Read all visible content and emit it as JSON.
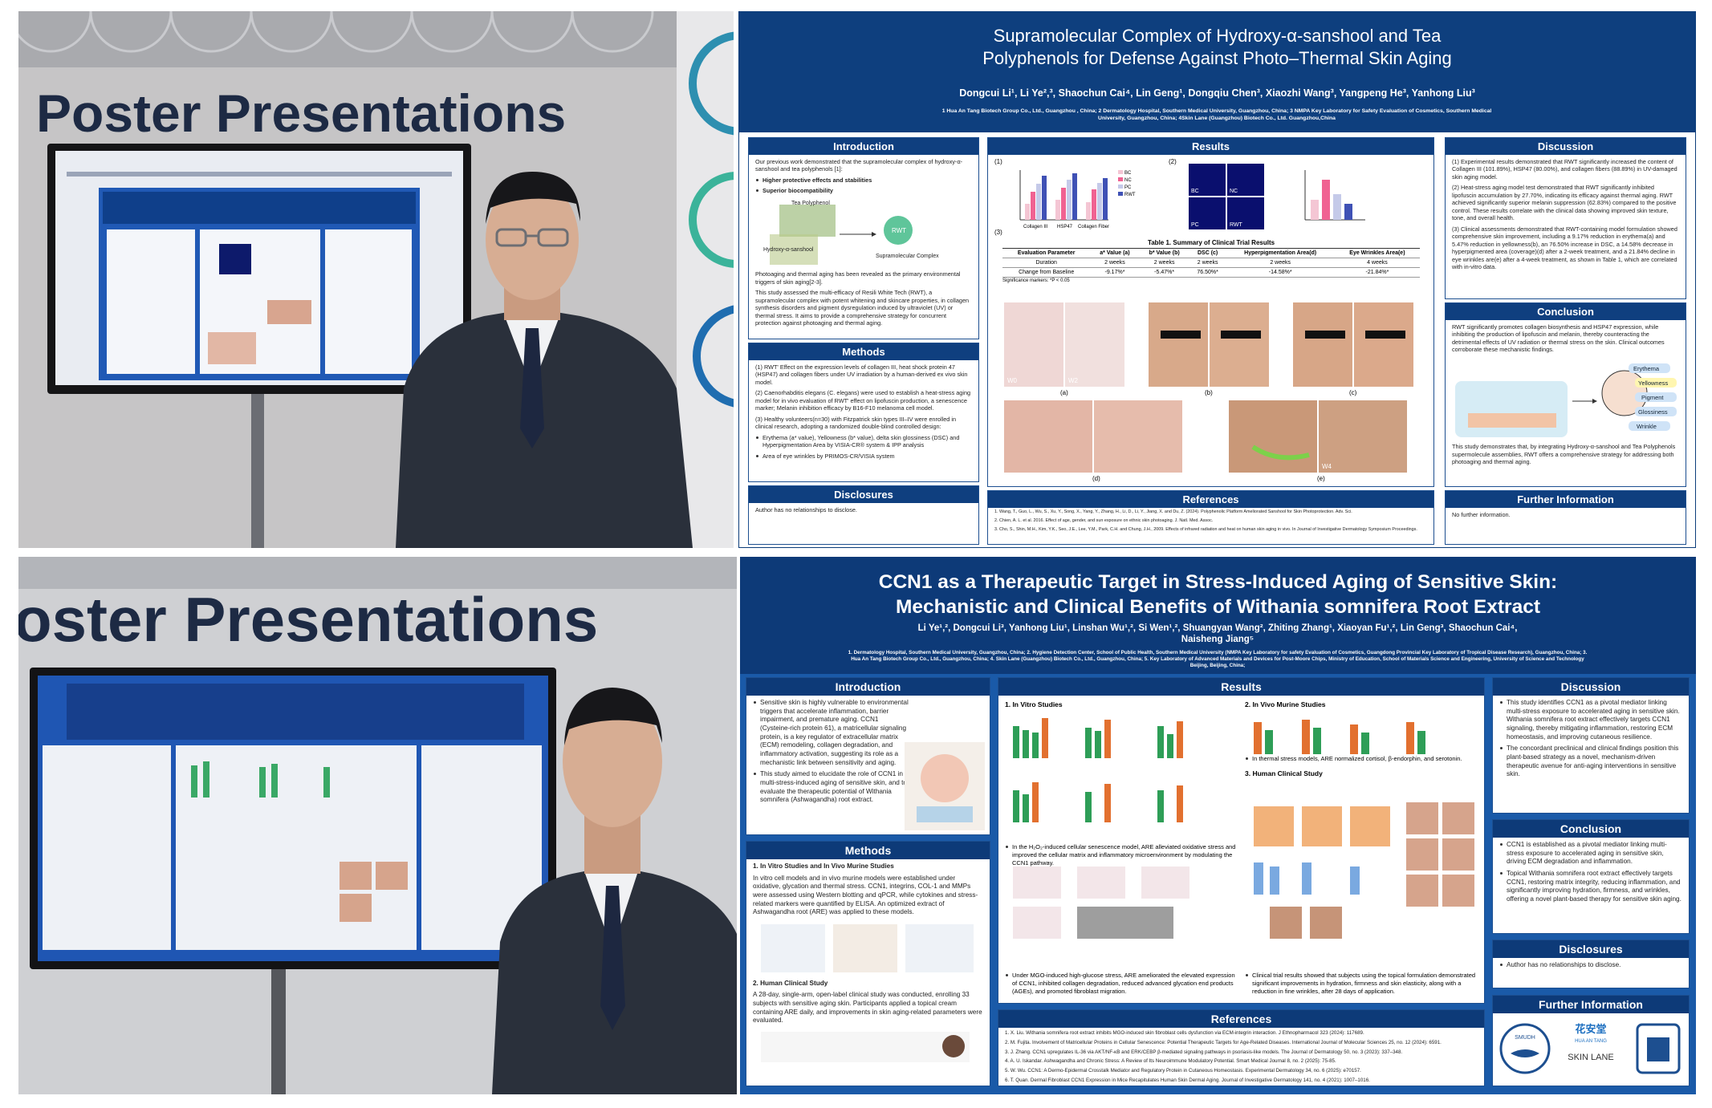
{
  "photo_top": {
    "banner": "Poster Presentations"
  },
  "poster_top": {
    "title_lines": [
      "Supramolecular Complex of Hydroxy-α-sanshool and Tea",
      "Polyphenols for Defense Against Photo–Thermal Skin Aging"
    ],
    "authors": "Dongcui Li¹, Li Ye²,³, Shaochun Cai⁴, Lin Geng¹, Dongqiu Chen³, Xiaozhi Wang³, Yangpeng He³, Yanhong Liu³",
    "affiliations": "1 Hua An Tang Biotech Group Co., Ltd., Guangzhou , China; 2 Dermatology Hospital, Southern Medical University, Guangzhou, China; 3 NMPA Key Laboratory for Safety Evaluation of Cosmetics, Southern Medical University, Guangzhou, China; 4Skin Lane (Guangzhou) Biotech Co., Ltd. Guangzhou,China",
    "introduction": {
      "heading": "Introduction",
      "lead": "Our previous work demonstrated that the supramolecular complex of hydroxy-α-sanshool and tea polyphenols [1]:",
      "bullets": [
        "Higher protective effects and stabilities",
        "Superior biocompatibility"
      ],
      "diagram": {
        "tea": "Tea Polyphenol",
        "sanshool": "Hydroxy-α-sanshool",
        "rwt": "RWT",
        "complex": "Supramolecular Complex"
      },
      "paragraphs": [
        "Photoaging and thermal aging has been revealed as the primary environmental triggers of skin aging[2-3].",
        "This study assessed the multi-efficacy of Resili White Tech (RWT), a supramolecular complex with potent whitening and skincare properties, in collagen synthesis disorders and pigment dysregulation induced by ultraviolet (UV) or thermal stress. It aims to provide a comprehensive strategy for concurrent protection against photoaging and thermal aging."
      ]
    },
    "methods": {
      "heading": "Methods",
      "items": [
        "(1) RWT' Effect on the expression levels of collagen III, heat shock protein 47 (HSP47) and collagen fibers under UV irradiation by a human-derived ex vivo skin model.",
        "(2) Caenorhabditis elegans (C. elegans) were used to establish a heat-stress aging model for in vivo evaluation of RWT' effect on lipofuscin production, a senescence marker; Melanin inhibition efficacy by B16-F10 melanoma cell model.",
        "(3) Healthy volunteers(n=30) with Fitzpatrick skin types III–IV were enrolled in clinical research, adopting a randomized double-blind controlled design:"
      ],
      "bullets": [
        "Erythema (a* value), Yellowness (b* value), delta skin glossiness (DSC) and Hyperpigmentation Area by VISIA-CR® system & IPP analysis",
        "Area of eye wrinkles by PRIMOS-CR/VISIA system"
      ]
    },
    "disclosures": {
      "heading": "Disclosures",
      "text": "Author has no relationships to disclose."
    },
    "results": {
      "heading": "Results",
      "legend": [
        "BC",
        "NC",
        "PC",
        "RWT"
      ],
      "chart_categories": [
        "Collagen III",
        "HSP47",
        "Collagen Fiber"
      ],
      "panels": [
        "(1)",
        "(2)",
        "(3)",
        "(a)",
        "(b)",
        "(c)",
        "(d)",
        "(e)"
      ],
      "micro_labels": [
        "BC",
        "NC",
        "PC",
        "RWT"
      ],
      "timepoints": [
        "W0",
        "W2",
        "W4"
      ],
      "table": {
        "caption": "Table 1. Summary of Clinical Trial Results",
        "header": [
          "Evaluation Parameter",
          "a* Value (a)",
          "b* Value (b)",
          "DSC (c)",
          "Hyperpigmentation Area(d)",
          "Eye Wrinkles Area(e)"
        ],
        "rows": [
          [
            "Duration",
            "2 weeks",
            "2 weeks",
            "2 weeks",
            "2 weeks",
            "4 weeks"
          ],
          [
            "Change from Baseline",
            "-9.17%*",
            "-5.47%*",
            "76.50%*",
            "-14.58%*",
            "-21.84%*"
          ]
        ],
        "note": "Significance markers: *P < 0.05"
      }
    },
    "references": {
      "heading": "References",
      "items": [
        "1. Wang, T., Guo, L., Wu, S., Xu, Y., Song, X., Yang, Y., Zhang, H., Li, D., Li, Y., Jiang, X. and Du, Z. (2024). Polyphenolic Platform Ameliorated Sanshool for Skin Photoprotection. Adv. Sci.",
        "2. Chien, A. L. et al. 2016. Effect of age, gender, and sun exposure on ethnic skin photoaging. J. Natl. Med. Assoc.",
        "3. Cho, S., Shin, M.H., Kim, Y.K., Seo, J.E., Lee, Y.M., Park, C.H. and Chung, J.H., 2009. Effects of infrared radiation and heat on human skin aging in vivo. In Journal of Investigative Dermatology Symposium Proceedings."
      ]
    },
    "discussion": {
      "heading": "Discussion",
      "paragraphs": [
        "(1) Experimental results demonstrated that RWT significantly increased the content of Collagen III (101.89%), HSP47 (80.00%), and collagen fibers (88.89%) in UV-damaged skin aging model.",
        "(2) Heat-stress aging model test demonstrated that RWT significantly inhibited lipofuscin accumulation by 27.70%, indicating its efficacy against thermal aging. RWT achieved significantly superior melanin suppression (62.83%) compared to the positive control. These results correlate with the clinical data showing improved skin texture, tone, and overall health.",
        "(3) Clinical assessments demonstrated that RWT-containing model formulation showed comprehensive skin improvement, including a 9.17% reduction in erythema(a) and 5.47% reduction in yellowness(b), an 76.50% increase in DSC, a 14.58% decrease in hyperpigmented area (coverage)(d) after a 2-week treatment, and a 21.84% decline in eye wrinkles are(e) after a 4-week treatment, as shown in Table 1, which are correlated with in-vitro data."
      ]
    },
    "conclusion": {
      "heading": "Conclusion",
      "text": "RWT significantly promotes collagen biosynthesis and HSP47 expression, while inhibiting the production of lipofuscin and melanin, thereby counteracting the detrimental effects of UV radiation or thermal stress on the skin. Clinical outcomes corroborate these mechanistic findings.",
      "diagram_labels": [
        "Erythema",
        "Yellowness",
        "Pigment",
        "Glossiness",
        "Wrinkle"
      ],
      "summary": "This study demonstrates that, by integrating Hydroxy-α-sanshool and Tea Polyphenols supermolecule assemblies, RWT offers a comprehensive strategy for addressing both photoaging and thermal aging."
    },
    "further": {
      "heading": "Further Information",
      "text": "No further information."
    }
  },
  "photo_bottom": {
    "banner": "oster Presentations"
  },
  "poster_bottom": {
    "title_lines": [
      "CCN1 as a Therapeutic Target in Stress-Induced Aging of Sensitive Skin:",
      "Mechanistic and Clinical Benefits of Withania somnifera Root Extract"
    ],
    "authors": "Li Ye¹,², Dongcui Li³, Yanhong Liu¹, Linshan Wu¹,², Si Wen¹,², Shuangyan Wang², Zhiting Zhang¹, Xiaoyan Fu¹,², Lin Geng³, Shaochun Cai⁴, Naisheng Jiang⁵",
    "affiliations": "1. Dermatology Hospital, Southern Medical University, Guangzhou, China; 2. Hygiene Detection Center, School of Public Health, Southern Medical University (NMPA Key Laboratory for safety Evaluation of Cosmetics, Guangdong Provincial Key Laboratory of Tropical Disease Research), Guangzhou, China; 3. Hua An Tang Biotech Group Co., Ltd., Guangzhou, China; 4. Skin Lane (Guangzhou) Biotech Co., Ltd., Guangzhou, China; 5. Key Laboratory of Advanced Materials and Devices for Post-Moore Chips, Ministry of Education, School of Materials Science and Engineering, University of Science and Technology Beijing, Beijing, China;",
    "introduction": {
      "heading": "Introduction",
      "bullets": [
        "Sensitive skin is highly vulnerable to environmental triggers that accelerate inflammation, barrier impairment, and premature aging. CCN1 (Cysteine-rich protein 61), a matricellular signaling protein, is a key regulator of extracellular matrix (ECM) remodeling, collagen degradation, and inflammatory activation, suggesting its role as a mechanistic link between sensitivity and aging.",
        "This study aimed to elucidate the role of CCN1 in multi-stress-induced aging of sensitive skin, and to evaluate the therapeutic potential of Withania somnifera (Ashwagandha) root extract."
      ]
    },
    "methods": {
      "heading": "Methods",
      "sub1": "1. In Vitro Studies and In Vivo Murine Studies",
      "text1": "In vitro cell models and in vivo murine models were established under oxidative, glycation and thermal stress. CCN1, integrins, COL-1 and MMPs were assessed using Western blotting and qPCR, while cytokines and stress-related markers were quantified by ELISA. An optimized extract of Ashwagandha root (ARE) was applied to these models.",
      "sub2": "2. Human Clinical Study",
      "text2": "A 28-day, single-arm, open-label clinical study was conducted, enrolling 33 subjects with sensitive aging skin. Participants applied a topical cream containing ARE daily, and improvements in skin aging-related parameters were evaluated."
    },
    "results": {
      "heading": "Results",
      "in_vitro": "1. In Vitro Studies",
      "in_vivo": "2. In Vivo Murine Studies",
      "in_vivo_note": "In thermal stress models, ARE normalized cortisol, β-endorphin, and serotonin.",
      "clinical": "3. Human Clinical Study",
      "h2o2_note": "In the H₂O₂-induced cellular senescence model, ARE alleviated oxidative stress and improved the cellular matrix and inflammatory microenvironment by modulating the CCN1 pathway.",
      "mgo_note": "Under MGO-induced high-glucose stress, ARE ameliorated the elevated expression of CCN1, inhibited collagen degradation, reduced advanced glycation end products (AGEs), and promoted fibroblast migration.",
      "clinical_note": "Clinical trial results showed that subjects using the topical formulation demonstrated significant improvements in hydration, firmness and skin elasticity, along with a reduction in fine wrinkles, after 28 days of application."
    },
    "references": {
      "heading": "References",
      "items": [
        "1. X. Liu. Withania somnifera root extract inhibits MGO-induced skin fibroblast cells dysfunction via ECM-integrin interaction. J Ethnopharmacol 323 (2024): 117689.",
        "2. M. Fujita. Involvement of Matricellular Proteins in Cellular Senescence: Potential Therapeutic Targets for Age-Related Diseases. International Journal of Molecular Sciences 25, no. 12 (2024): 6591.",
        "3. J. Zhang. CCN1 upregulates IL-36 via AKT/NF-κB and ERK/CEBP β-mediated signaling pathways in psoriasis-like models. The Journal of Dermatology 50, no. 3 (2023): 337–348.",
        "4. A. U. Iskandar. Ashwagandha and Chronic Stress: A Review of Its Neuroimmune Modulatory Potential. Smart Medical Journal 8, no. 2 (2025): 75-85.",
        "5. W. Wu. CCN1: A Dermo-Epidermal Crosstalk Mediator and Regulatory Protein in Cutaneous Homeostasis. Experimental Dermatology 34, no. 6 (2025): e70157.",
        "6. T. Quan. Dermal Fibroblast CCN1 Expression in Mice Recapitulates Human Skin Dermal Aging. Journal of Investigative Dermatology 141, no. 4 (2021): 1007–1016."
      ]
    },
    "discussion": {
      "heading": "Discussion",
      "bullets": [
        "This study identifies CCN1 as a pivotal mediator linking multi-stress exposure to accelerated aging in sensitive skin. Withania somnifera root extract effectively targets CCN1 signaling, thereby mitigating inflammation, restoring ECM homeostasis, and improving cutaneous resilience.",
        "The concordant preclinical and clinical findings position this plant-based strategy as a novel, mechanism-driven therapeutic avenue for anti-aging interventions in sensitive skin."
      ]
    },
    "conclusion": {
      "heading": "Conclusion",
      "bullets": [
        "CCN1 is established as a pivotal mediator linking multi-stress exposure to accelerated aging in sensitive skin, driving ECM degradation and inflammation.",
        "Topical Withania somnifera root extract effectively targets CCN1, restoring matrix integrity, reducing inflammation, and significantly improving hydration, firmness, and wrinkles, offering a novel plant-based therapy for sensitive skin aging."
      ]
    },
    "disclosures": {
      "heading": "Disclosures",
      "bullets": [
        "Author has no relationships to disclose."
      ]
    },
    "further": {
      "heading": "Further Information",
      "logo_cn": "花安堂",
      "logo_en": "HUA AN TANG",
      "logo_skin": "SKIN LANE",
      "logo_smudh": "SMUDH"
    }
  }
}
